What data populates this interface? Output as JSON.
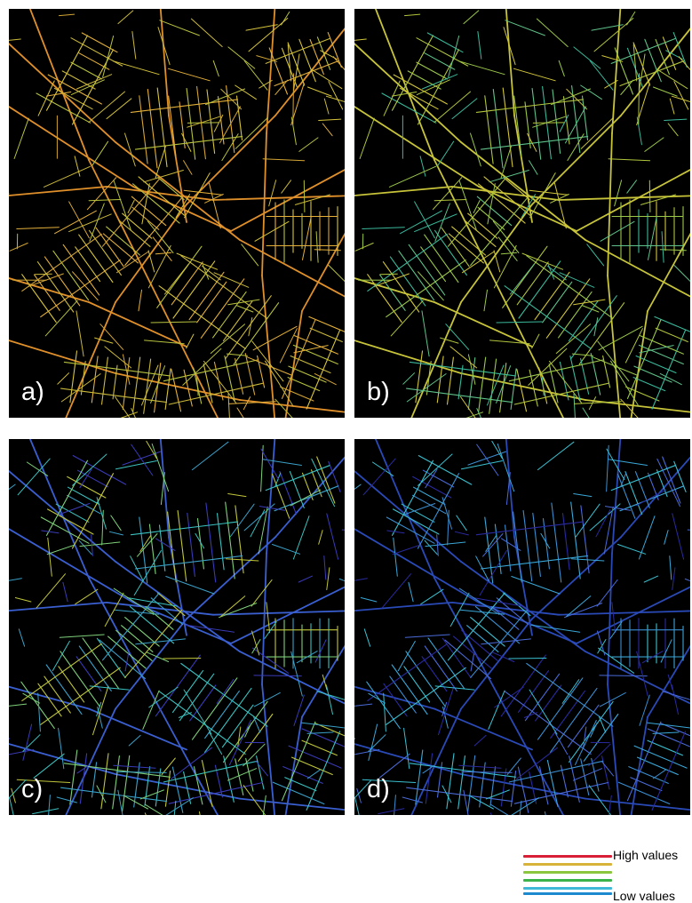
{
  "panels": [
    {
      "id": "a",
      "label": "a)",
      "palette": [
        "#e0902a",
        "#d3a535",
        "#c9b83a",
        "#b7c23e",
        "#d6c43a",
        "#e4b03a"
      ]
    },
    {
      "id": "b",
      "label": "b)",
      "palette": [
        "#c7c43a",
        "#b2c53c",
        "#9cc84a",
        "#d2c63a",
        "#5fc28a",
        "#3ab89a"
      ]
    },
    {
      "id": "c",
      "label": "c)",
      "palette": [
        "#3a5fd0",
        "#3aa0c8",
        "#3ac2c0",
        "#7fd07a",
        "#c0c63a",
        "#3a3ab8"
      ]
    },
    {
      "id": "d",
      "label": "d)",
      "palette": [
        "#2a4ab8",
        "#3a8ed0",
        "#3aa8d8",
        "#2a2aa0",
        "#4a6ad8",
        "#3ac0d0"
      ]
    }
  ],
  "legend": {
    "high_label": "High values",
    "low_label": "Low values",
    "colors": [
      "#d81f36",
      "#d8b33a",
      "#8cc63f",
      "#3bb24a",
      "#3fb8d8",
      "#1d8ad0"
    ]
  }
}
